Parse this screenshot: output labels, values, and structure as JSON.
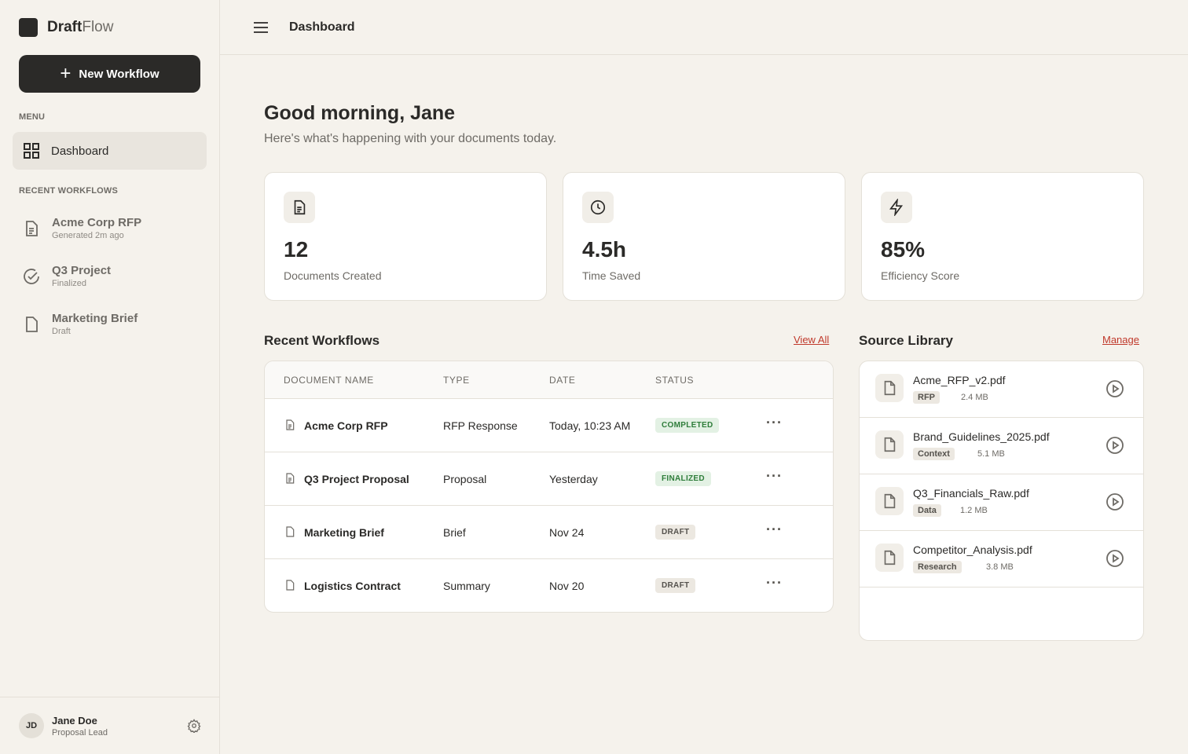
{
  "brand": {
    "bold": "Draft",
    "light": "Flow"
  },
  "new_workflow": "New Workflow",
  "menu_label": "MENU",
  "nav": {
    "dashboard": "Dashboard"
  },
  "recent_label": "RECENT WORKFLOWS",
  "recent": [
    {
      "title": "Acme Corp RFP",
      "sub": "Generated 2m ago",
      "icon": "file-text-icon"
    },
    {
      "title": "Q3 Project",
      "sub": "Finalized",
      "icon": "check-circle-icon"
    },
    {
      "title": "Marketing Brief",
      "sub": "Draft",
      "icon": "file-icon"
    }
  ],
  "user": {
    "initials": "JD",
    "name": "Jane Doe",
    "role": "Proposal Lead"
  },
  "topbar": {
    "title": "Dashboard"
  },
  "greeting": "Good morning, Jane",
  "subtitle": "Here's what's happening with your documents today.",
  "stats": [
    {
      "value": "12",
      "label": "Documents Created"
    },
    {
      "value": "4.5h",
      "label": "Time Saved"
    },
    {
      "value": "85%",
      "label": "Efficiency Score"
    }
  ],
  "workflows": {
    "title": "Recent Workflows",
    "view_all": "View All",
    "headers": [
      "DOCUMENT NAME",
      "TYPE",
      "DATE",
      "STATUS"
    ],
    "rows": [
      {
        "name": "Acme Corp RFP",
        "type": "RFP Response",
        "date": "Today, 10:23 AM",
        "status": "COMPLETED"
      },
      {
        "name": "Q3 Project Proposal",
        "type": "Proposal",
        "date": "Yesterday",
        "status": "FINALIZED"
      },
      {
        "name": "Marketing Brief",
        "type": "Brief",
        "date": "Nov 24",
        "status": "DRAFT"
      },
      {
        "name": "Logistics Contract",
        "type": "Summary",
        "date": "Nov 20",
        "status": "DRAFT"
      }
    ]
  },
  "library": {
    "title": "Source Library",
    "manage": "Manage",
    "items": [
      {
        "name": "Acme_RFP_v2.pdf",
        "tag": "RFP",
        "size": "2.4 MB"
      },
      {
        "name": "Brand_Guidelines_2025.pdf",
        "tag": "Context",
        "size": "5.1 MB"
      },
      {
        "name": "Q3_Financials_Raw.pdf",
        "tag": "Data",
        "size": "1.2 MB"
      },
      {
        "name": "Competitor_Analysis.pdf",
        "tag": "Research",
        "size": "3.8 MB"
      }
    ]
  }
}
